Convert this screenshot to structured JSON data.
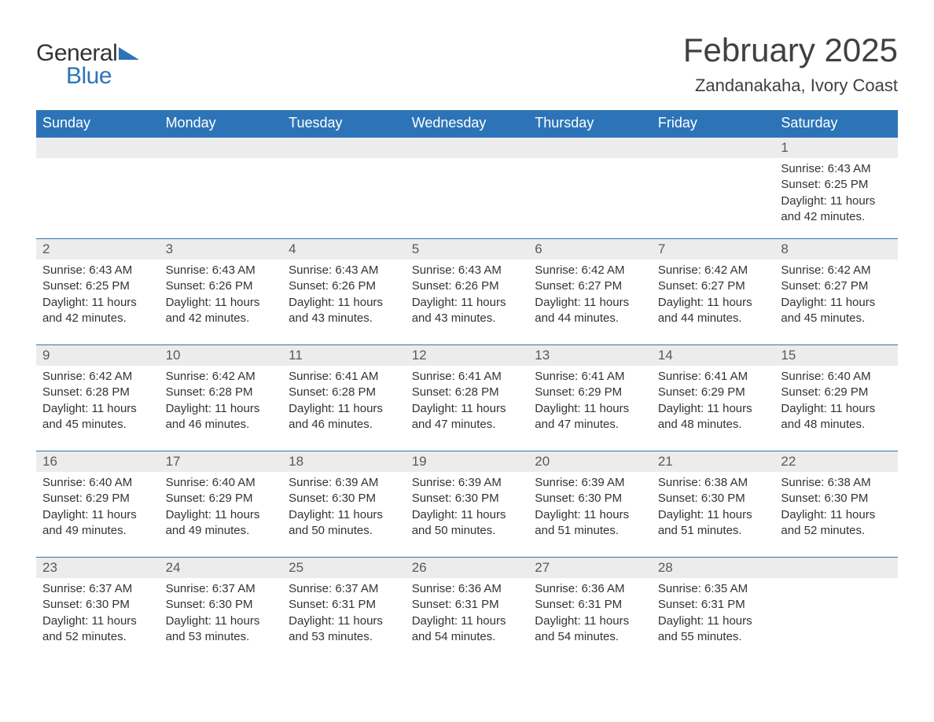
{
  "brand": {
    "word1": "General",
    "word2": "Blue",
    "accent_color": "#2c74b7",
    "text_color": "#333333"
  },
  "title": "February 2025",
  "location": "Zandanakaha, Ivory Coast",
  "header_bg": "#2c74b7",
  "header_fg": "#ffffff",
  "daynum_bg": "#ececec",
  "row_border_color": "#2c74b7",
  "page_bg": "#ffffff",
  "weekdays": [
    "Sunday",
    "Monday",
    "Tuesday",
    "Wednesday",
    "Thursday",
    "Friday",
    "Saturday"
  ],
  "weeks": [
    [
      {
        "day": "",
        "sunrise": "",
        "sunset": "",
        "daylight": ""
      },
      {
        "day": "",
        "sunrise": "",
        "sunset": "",
        "daylight": ""
      },
      {
        "day": "",
        "sunrise": "",
        "sunset": "",
        "daylight": ""
      },
      {
        "day": "",
        "sunrise": "",
        "sunset": "",
        "daylight": ""
      },
      {
        "day": "",
        "sunrise": "",
        "sunset": "",
        "daylight": ""
      },
      {
        "day": "",
        "sunrise": "",
        "sunset": "",
        "daylight": ""
      },
      {
        "day": "1",
        "sunrise": "Sunrise: 6:43 AM",
        "sunset": "Sunset: 6:25 PM",
        "daylight": "Daylight: 11 hours and 42 minutes."
      }
    ],
    [
      {
        "day": "2",
        "sunrise": "Sunrise: 6:43 AM",
        "sunset": "Sunset: 6:25 PM",
        "daylight": "Daylight: 11 hours and 42 minutes."
      },
      {
        "day": "3",
        "sunrise": "Sunrise: 6:43 AM",
        "sunset": "Sunset: 6:26 PM",
        "daylight": "Daylight: 11 hours and 42 minutes."
      },
      {
        "day": "4",
        "sunrise": "Sunrise: 6:43 AM",
        "sunset": "Sunset: 6:26 PM",
        "daylight": "Daylight: 11 hours and 43 minutes."
      },
      {
        "day": "5",
        "sunrise": "Sunrise: 6:43 AM",
        "sunset": "Sunset: 6:26 PM",
        "daylight": "Daylight: 11 hours and 43 minutes."
      },
      {
        "day": "6",
        "sunrise": "Sunrise: 6:42 AM",
        "sunset": "Sunset: 6:27 PM",
        "daylight": "Daylight: 11 hours and 44 minutes."
      },
      {
        "day": "7",
        "sunrise": "Sunrise: 6:42 AM",
        "sunset": "Sunset: 6:27 PM",
        "daylight": "Daylight: 11 hours and 44 minutes."
      },
      {
        "day": "8",
        "sunrise": "Sunrise: 6:42 AM",
        "sunset": "Sunset: 6:27 PM",
        "daylight": "Daylight: 11 hours and 45 minutes."
      }
    ],
    [
      {
        "day": "9",
        "sunrise": "Sunrise: 6:42 AM",
        "sunset": "Sunset: 6:28 PM",
        "daylight": "Daylight: 11 hours and 45 minutes."
      },
      {
        "day": "10",
        "sunrise": "Sunrise: 6:42 AM",
        "sunset": "Sunset: 6:28 PM",
        "daylight": "Daylight: 11 hours and 46 minutes."
      },
      {
        "day": "11",
        "sunrise": "Sunrise: 6:41 AM",
        "sunset": "Sunset: 6:28 PM",
        "daylight": "Daylight: 11 hours and 46 minutes."
      },
      {
        "day": "12",
        "sunrise": "Sunrise: 6:41 AM",
        "sunset": "Sunset: 6:28 PM",
        "daylight": "Daylight: 11 hours and 47 minutes."
      },
      {
        "day": "13",
        "sunrise": "Sunrise: 6:41 AM",
        "sunset": "Sunset: 6:29 PM",
        "daylight": "Daylight: 11 hours and 47 minutes."
      },
      {
        "day": "14",
        "sunrise": "Sunrise: 6:41 AM",
        "sunset": "Sunset: 6:29 PM",
        "daylight": "Daylight: 11 hours and 48 minutes."
      },
      {
        "day": "15",
        "sunrise": "Sunrise: 6:40 AM",
        "sunset": "Sunset: 6:29 PM",
        "daylight": "Daylight: 11 hours and 48 minutes."
      }
    ],
    [
      {
        "day": "16",
        "sunrise": "Sunrise: 6:40 AM",
        "sunset": "Sunset: 6:29 PM",
        "daylight": "Daylight: 11 hours and 49 minutes."
      },
      {
        "day": "17",
        "sunrise": "Sunrise: 6:40 AM",
        "sunset": "Sunset: 6:29 PM",
        "daylight": "Daylight: 11 hours and 49 minutes."
      },
      {
        "day": "18",
        "sunrise": "Sunrise: 6:39 AM",
        "sunset": "Sunset: 6:30 PM",
        "daylight": "Daylight: 11 hours and 50 minutes."
      },
      {
        "day": "19",
        "sunrise": "Sunrise: 6:39 AM",
        "sunset": "Sunset: 6:30 PM",
        "daylight": "Daylight: 11 hours and 50 minutes."
      },
      {
        "day": "20",
        "sunrise": "Sunrise: 6:39 AM",
        "sunset": "Sunset: 6:30 PM",
        "daylight": "Daylight: 11 hours and 51 minutes."
      },
      {
        "day": "21",
        "sunrise": "Sunrise: 6:38 AM",
        "sunset": "Sunset: 6:30 PM",
        "daylight": "Daylight: 11 hours and 51 minutes."
      },
      {
        "day": "22",
        "sunrise": "Sunrise: 6:38 AM",
        "sunset": "Sunset: 6:30 PM",
        "daylight": "Daylight: 11 hours and 52 minutes."
      }
    ],
    [
      {
        "day": "23",
        "sunrise": "Sunrise: 6:37 AM",
        "sunset": "Sunset: 6:30 PM",
        "daylight": "Daylight: 11 hours and 52 minutes."
      },
      {
        "day": "24",
        "sunrise": "Sunrise: 6:37 AM",
        "sunset": "Sunset: 6:30 PM",
        "daylight": "Daylight: 11 hours and 53 minutes."
      },
      {
        "day": "25",
        "sunrise": "Sunrise: 6:37 AM",
        "sunset": "Sunset: 6:31 PM",
        "daylight": "Daylight: 11 hours and 53 minutes."
      },
      {
        "day": "26",
        "sunrise": "Sunrise: 6:36 AM",
        "sunset": "Sunset: 6:31 PM",
        "daylight": "Daylight: 11 hours and 54 minutes."
      },
      {
        "day": "27",
        "sunrise": "Sunrise: 6:36 AM",
        "sunset": "Sunset: 6:31 PM",
        "daylight": "Daylight: 11 hours and 54 minutes."
      },
      {
        "day": "28",
        "sunrise": "Sunrise: 6:35 AM",
        "sunset": "Sunset: 6:31 PM",
        "daylight": "Daylight: 11 hours and 55 minutes."
      },
      {
        "day": "",
        "sunrise": "",
        "sunset": "",
        "daylight": ""
      }
    ]
  ]
}
